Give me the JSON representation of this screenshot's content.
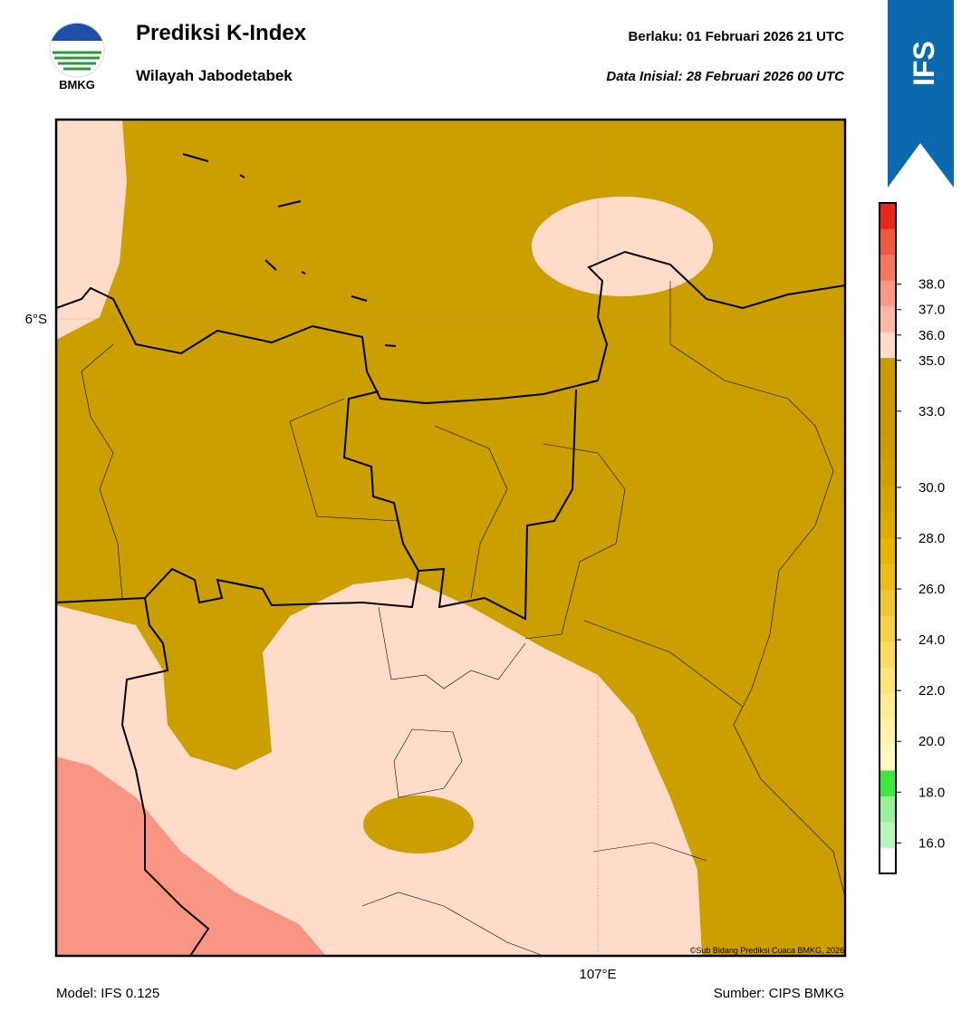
{
  "header": {
    "logo_text": "BMKG",
    "title": "Prediksi K-Index",
    "subtitle": "Wilayah Jabodetabek",
    "valid_label": "Berlaku:  01 Februari 2026 21 UTC",
    "init_label": "Data Inisial:  28 Februari 2026 00 UTC",
    "badge": "IFS"
  },
  "map": {
    "lat_label": "6°S",
    "lon_label": "107°E",
    "copyright": "©Sub Bidang Prediksi Cuaca BMKG, 2026",
    "colors": {
      "ocean_land": "#cc9f00",
      "moderate": "#ffdcc9",
      "high": "#f99683"
    }
  },
  "colorbar": {
    "clim": [
      14.8,
      41.2
    ],
    "colors": [
      "#ffffff",
      "#b8f6b8",
      "#9cf09c",
      "#3ee83e",
      "#fff8c4",
      "#fff2aa",
      "#ffec94",
      "#ffe47c",
      "#fbdb62",
      "#f6d04a",
      "#f1c634",
      "#ecbc1c",
      "#e6b300",
      "#dcab00",
      "#d4a500",
      "#cca000",
      "#c99e00",
      "#c89c00",
      "#c89b00",
      "#c99b00",
      "#ffdcc9",
      "#fcb8a2",
      "#f99a86",
      "#f27860",
      "#ec5a44",
      "#e8281e"
    ],
    "ticks": [
      {
        "value": 16,
        "label": "16.0"
      },
      {
        "value": 18,
        "label": "18.0"
      },
      {
        "value": 20,
        "label": "20.0"
      },
      {
        "value": 22,
        "label": "22.0"
      },
      {
        "value": 24,
        "label": "24.0"
      },
      {
        "value": 26,
        "label": "26.0"
      },
      {
        "value": 28,
        "label": "28.0"
      },
      {
        "value": 30,
        "label": "30.0"
      },
      {
        "value": 33,
        "label": "33.0"
      },
      {
        "value": 35,
        "label": "35.0"
      },
      {
        "value": 36,
        "label": "36.0"
      },
      {
        "value": 37,
        "label": "37.0"
      },
      {
        "value": 38,
        "label": "38.0"
      }
    ]
  },
  "footer": {
    "model": "Model: IFS 0.125",
    "source": "Sumber: CIPS BMKG"
  }
}
